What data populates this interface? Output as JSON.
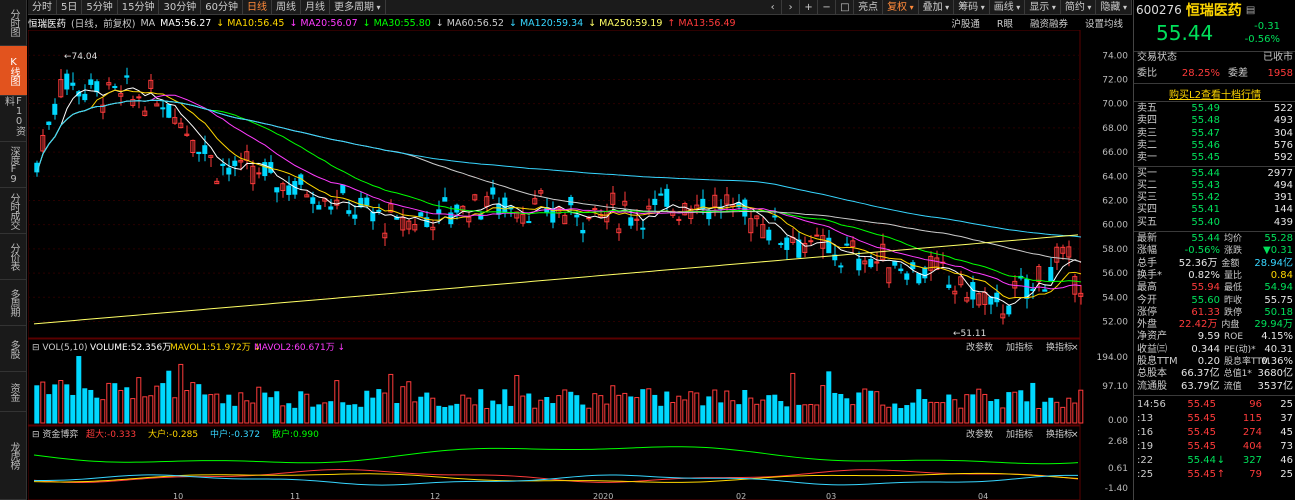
{
  "left_tabs": [
    {
      "label": "分时图",
      "active": false
    },
    {
      "label": "K线图",
      "active": true
    },
    {
      "label": "F10资料",
      "active": false
    },
    {
      "label": "深度F9",
      "active": false
    },
    {
      "label": "分时成交",
      "active": false
    },
    {
      "label": "分价表",
      "active": false
    },
    {
      "label": "多周期",
      "active": false
    },
    {
      "label": "多股",
      "active": false
    },
    {
      "label": "资金",
      "active": false
    },
    {
      "label": "龙虎榜",
      "active": false
    }
  ],
  "toolbar": {
    "periods": [
      "分时",
      "5日",
      "5分钟",
      "15分钟",
      "30分钟",
      "60分钟",
      "日线",
      "周线",
      "月线",
      "更多周期"
    ],
    "active_period": "日线",
    "right_buttons": [
      "亮点",
      "复权",
      "叠加",
      "筹码",
      "画线",
      "显示",
      "简约",
      "隐藏"
    ],
    "icons": [
      "‹",
      "›",
      "+",
      "−",
      "□"
    ]
  },
  "malegend": {
    "name": "恒瑞医药",
    "mode": "(日线，前复权)",
    "items": [
      {
        "text": "MA",
        "color": "#cccccc"
      },
      {
        "text": "MA5:56.27",
        "color": "#ffffff"
      },
      {
        "text": "↓ MA10:56.45",
        "color": "#ffd700"
      },
      {
        "text": "↓ MA20:56.07",
        "color": "#ff3cff"
      },
      {
        "text": "↓ MA30:55.80",
        "color": "#00ff00"
      },
      {
        "text": "↓ MA60:56.52",
        "color": "#cccccc"
      },
      {
        "text": "↓ MA120:59.34",
        "color": "#37d6ff"
      },
      {
        "text": "↓ MA250:59.19",
        "color": "#ffff66"
      },
      {
        "text": "↑ MA13:56.49",
        "color": "#ff3b3b"
      }
    ],
    "right": [
      "沪股通",
      "R眼",
      "融资融券",
      "设置均线"
    ]
  },
  "price_axis": [
    "74.00",
    "72.00",
    "70.00",
    "68.00",
    "66.00",
    "64.00",
    "62.00",
    "60.00",
    "58.00",
    "56.00",
    "54.00",
    "52.00"
  ],
  "annotations": {
    "high": "74.04",
    "low": "51.11"
  },
  "vol_legend": {
    "text": "VOL(5,10)",
    "volume": "VOLUME:52.356万",
    "vol1": "MAVOL1:51.972万",
    "vol2": "MAVOL2:60.671万",
    "buttons": [
      "改参数",
      "加指标",
      "换指标"
    ]
  },
  "vol_axis": [
    "194.00",
    "97.10",
    "0.00"
  ],
  "fund_legend": {
    "text": "资金博弈",
    "items": [
      {
        "text": "超大:-0.333",
        "color": "#ff3b3b"
      },
      {
        "text": "大户:-0.285",
        "color": "#ffd700"
      },
      {
        "text": "中户:-0.372",
        "color": "#37d6ff"
      },
      {
        "text": "散户:0.990",
        "color": "#00ff00"
      }
    ],
    "buttons": [
      "改参数",
      "加指标",
      "换指标"
    ]
  },
  "fund_axis": [
    "2.68",
    "0.61",
    "-1.40"
  ],
  "date_axis": [
    "10",
    "11",
    "12",
    "2020",
    "02",
    "03",
    "04"
  ],
  "quote": {
    "code": "600276",
    "name": "恒瑞医药",
    "price": "55.44",
    "change": "-0.31",
    "pct": "-0.56%",
    "status_label": "交易状态",
    "status": "已收市",
    "weibi_label": "委比",
    "weibi": "28.25%",
    "weicha_label": "委差",
    "weicha": "1958",
    "l2_link": "购买L2查看十档行情",
    "asks": [
      {
        "label": "卖五",
        "price": "55.49",
        "vol": "522"
      },
      {
        "label": "卖四",
        "price": "55.48",
        "vol": "493"
      },
      {
        "label": "卖三",
        "price": "55.47",
        "vol": "304"
      },
      {
        "label": "卖二",
        "price": "55.46",
        "vol": "576"
      },
      {
        "label": "卖一",
        "price": "55.45",
        "vol": "592"
      }
    ],
    "bids": [
      {
        "label": "买一",
        "price": "55.44",
        "vol": "2977"
      },
      {
        "label": "买二",
        "price": "55.43",
        "vol": "494"
      },
      {
        "label": "买三",
        "price": "55.42",
        "vol": "391"
      },
      {
        "label": "买四",
        "price": "55.41",
        "vol": "144"
      },
      {
        "label": "买五",
        "price": "55.40",
        "vol": "439"
      }
    ],
    "stats": [
      {
        "l": "最新",
        "v": "55.44",
        "vc": "green",
        "l2": "均价",
        "v2": "55.28",
        "v2c": "green"
      },
      {
        "l": "涨幅",
        "v": "-0.56%",
        "vc": "green",
        "l2": "涨跌",
        "v2": "▼0.31",
        "v2c": "green"
      },
      {
        "l": "总手",
        "v": "52.36万",
        "vc": "white",
        "l2": "金额",
        "v2": "28.94亿",
        "v2c": "cyan"
      },
      {
        "l": "换手*",
        "v": "0.82%",
        "vc": "white",
        "l2": "量比",
        "v2": "0.84",
        "v2c": "yellow"
      },
      {
        "l": "最高",
        "v": "55.94",
        "vc": "red",
        "l2": "最低",
        "v2": "54.94",
        "v2c": "green"
      },
      {
        "l": "今开",
        "v": "55.60",
        "vc": "green",
        "l2": "昨收",
        "v2": "55.75",
        "v2c": "white"
      },
      {
        "l": "涨停",
        "v": "61.33",
        "vc": "red",
        "l2": "跌停",
        "v2": "50.18",
        "v2c": "green"
      },
      {
        "l": "外盘",
        "v": "22.42万",
        "vc": "red",
        "l2": "内盘",
        "v2": "29.94万",
        "v2c": "green"
      },
      {
        "l": "净资产",
        "v": "9.59",
        "vc": "white",
        "l2": "ROE",
        "v2": "4.15%",
        "v2c": "white"
      },
      {
        "l": "收益㈢",
        "v": "0.344",
        "vc": "white",
        "l2": "PE(动)*",
        "v2": "40.31",
        "v2c": "white"
      },
      {
        "l": "股息TTM",
        "v": "0.20",
        "vc": "white",
        "l2": "股息率TTM",
        "v2": "0.36%",
        "v2c": "white"
      },
      {
        "l": "总股本",
        "v": "66.37亿",
        "vc": "white",
        "l2": "总值1*",
        "v2": "3680亿",
        "v2c": "white"
      },
      {
        "l": "流通股",
        "v": "63.79亿",
        "vc": "white",
        "l2": "流值",
        "v2": "3537亿",
        "v2c": "white"
      }
    ],
    "ticks": [
      {
        "time": "14:56",
        "price": "55.45",
        "arrow": "",
        "vol": "96",
        "n": "25",
        "vc": "red"
      },
      {
        "time": ":13",
        "price": "55.45",
        "arrow": "",
        "vol": "115",
        "n": "37",
        "vc": "red"
      },
      {
        "time": ":16",
        "price": "55.45",
        "arrow": "",
        "vol": "274",
        "n": "45",
        "vc": "red"
      },
      {
        "time": ":19",
        "price": "55.45",
        "arrow": "",
        "vol": "404",
        "n": "73",
        "vc": "red"
      },
      {
        "time": ":22",
        "price": "55.44",
        "arrow": "↓",
        "vol": "327",
        "n": "46",
        "vc": "green"
      },
      {
        "time": ":25",
        "price": "55.45",
        "arrow": "↑",
        "vol": "79",
        "n": "25",
        "vc": "red"
      }
    ]
  },
  "colors": {
    "up": "#ff3b3b",
    "down": "#00d8ff",
    "bg": "#000000",
    "grid": "#3a0000"
  }
}
